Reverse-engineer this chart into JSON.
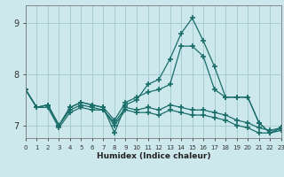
{
  "title": "",
  "xlabel": "Humidex (Indice chaleur)",
  "bg_color": "#cce8ec",
  "grid_color": "#a0c8cc",
  "line_color": "#1a6e6a",
  "x_values": [
    0,
    1,
    2,
    3,
    4,
    5,
    6,
    7,
    8,
    9,
    10,
    11,
    12,
    13,
    14,
    15,
    16,
    17,
    18,
    19,
    20,
    21,
    22,
    23
  ],
  "series": [
    [
      7.7,
      7.35,
      7.35,
      6.95,
      7.25,
      7.35,
      7.3,
      7.3,
      7.0,
      7.3,
      7.25,
      7.25,
      7.2,
      7.3,
      7.25,
      7.2,
      7.2,
      7.15,
      7.1,
      7.0,
      6.95,
      6.85,
      6.85,
      6.9
    ],
    [
      7.7,
      7.35,
      7.4,
      7.0,
      7.3,
      7.4,
      7.35,
      7.3,
      7.05,
      7.35,
      7.3,
      7.35,
      7.3,
      7.4,
      7.35,
      7.3,
      7.3,
      7.25,
      7.2,
      7.1,
      7.05,
      6.95,
      6.9,
      6.95
    ],
    [
      7.7,
      7.35,
      7.4,
      7.0,
      7.35,
      7.45,
      7.4,
      7.35,
      7.1,
      7.45,
      7.55,
      7.65,
      7.7,
      7.8,
      8.55,
      8.55,
      8.35,
      7.7,
      7.55,
      7.55,
      7.55,
      7.05,
      6.85,
      6.95
    ],
    [
      7.7,
      7.35,
      7.4,
      7.0,
      7.35,
      7.45,
      7.4,
      7.35,
      6.85,
      7.4,
      7.5,
      7.8,
      7.9,
      8.3,
      8.8,
      9.1,
      8.65,
      8.15,
      7.55,
      7.55,
      7.55,
      7.05,
      6.85,
      6.95
    ]
  ],
  "xlim": [
    0,
    23
  ],
  "ylim": [
    6.75,
    9.35
  ],
  "yticks": [
    7,
    8,
    9
  ],
  "xtick_labels": [
    "0",
    "1",
    "2",
    "3",
    "4",
    "5",
    "6",
    "7",
    "8",
    "9",
    "10",
    "11",
    "12",
    "13",
    "14",
    "15",
    "16",
    "17",
    "18",
    "19",
    "20",
    "21",
    "22",
    "23"
  ],
  "marker": "+",
  "markersize": 4.0,
  "markeredgewidth": 1.2,
  "linewidth": 0.9
}
